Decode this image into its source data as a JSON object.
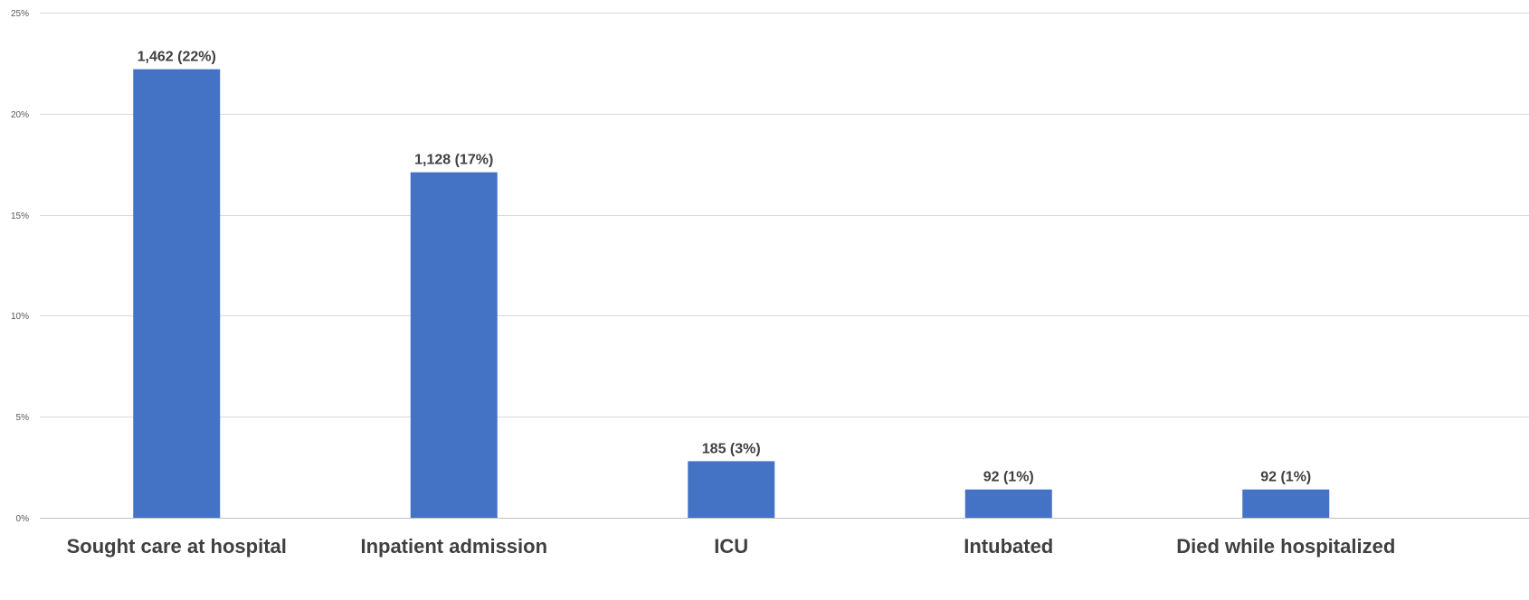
{
  "chart_data": {
    "type": "bar",
    "title": "",
    "xlabel": "",
    "ylabel": "",
    "categories": [
      "Sought care at hospital",
      "Inpatient admission",
      "ICU",
      "Intubated",
      "Died while hospitalized"
    ],
    "values": [
      22.2,
      17.1,
      2.8,
      1.4,
      1.4
    ],
    "data_labels": [
      "1,462 (22%)",
      "1,128 (17%)",
      "185 (3%)",
      "92 (1%)",
      "92 (1%)"
    ],
    "ylim": [
      0,
      25
    ],
    "yticks": [
      0,
      5,
      10,
      15,
      20,
      25
    ],
    "ytick_labels": [
      "0%",
      "5%",
      "10%",
      "15%",
      "20%",
      "25%"
    ],
    "grid": true,
    "legend": "none",
    "bar_color": "#4472C4"
  }
}
